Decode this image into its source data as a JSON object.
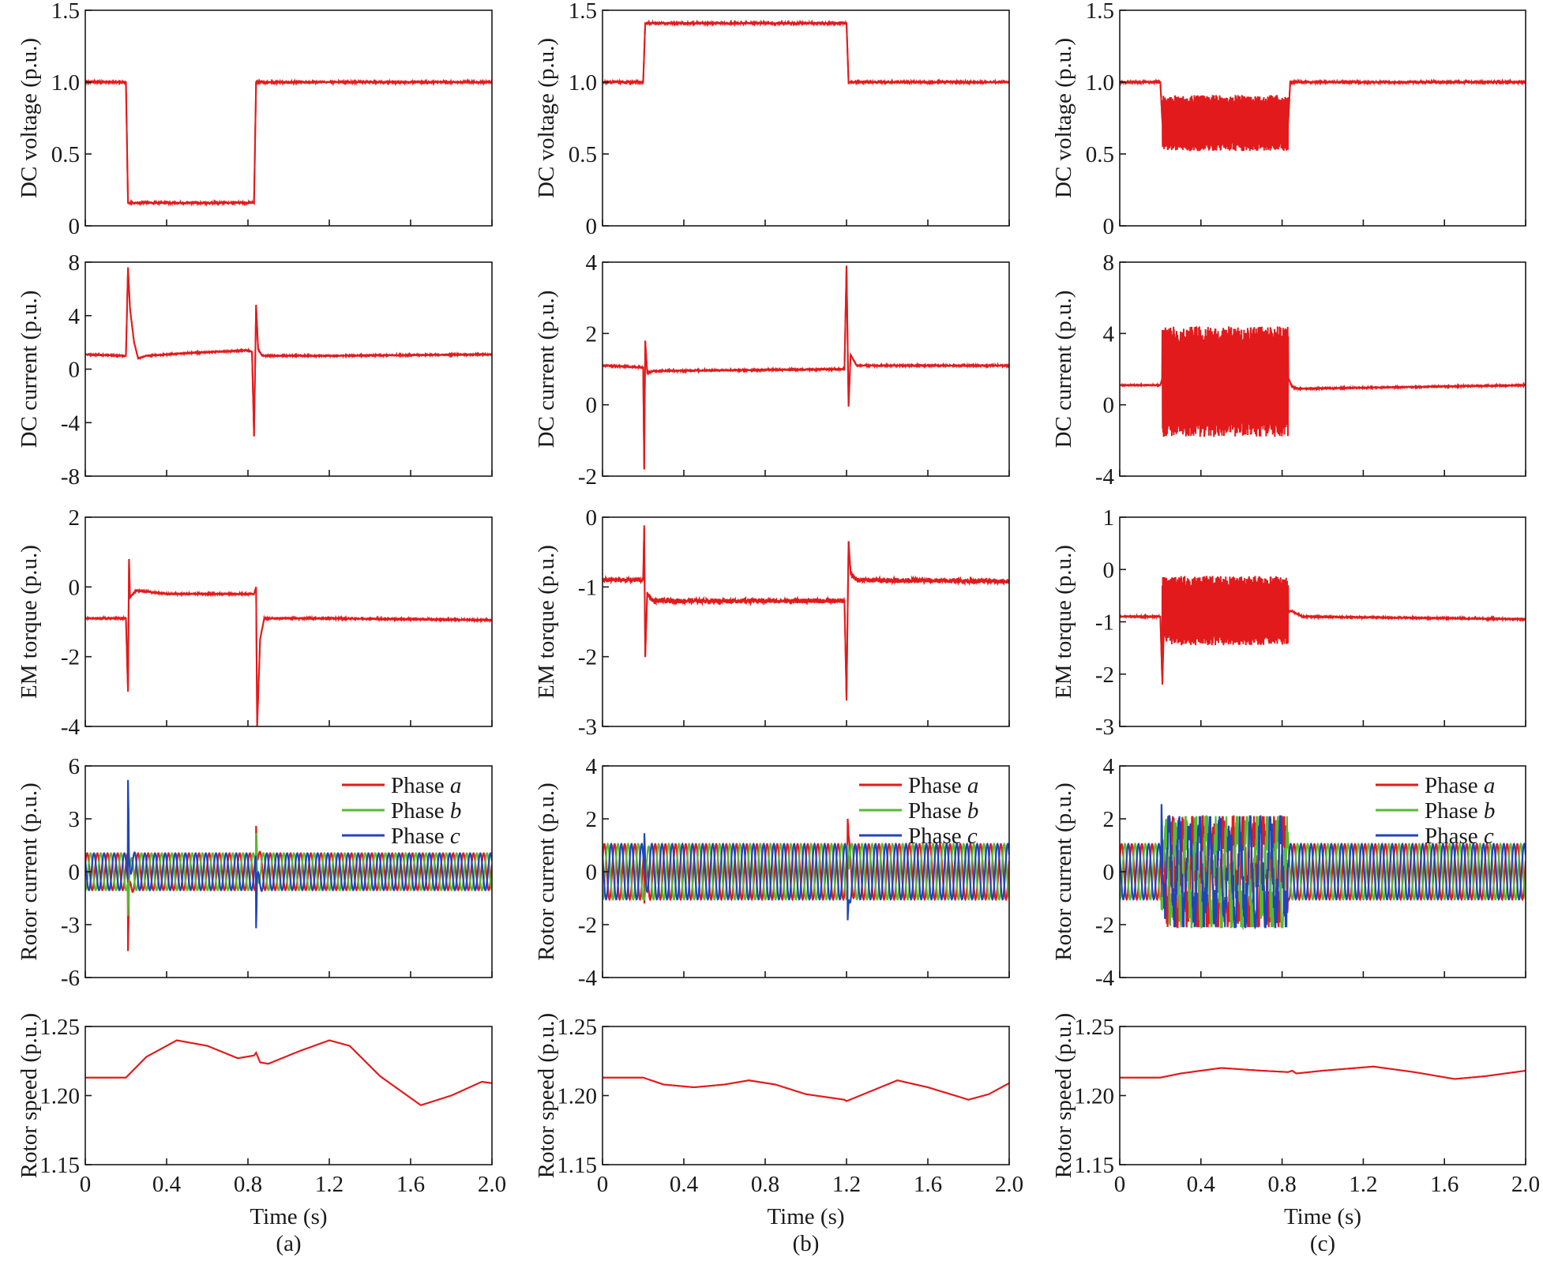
{
  "colors": {
    "phase_a": "#e31a1c",
    "phase_b": "#55bb33",
    "phase_c": "#2244bb",
    "single": "#e31a1c",
    "axis": "#1a1a1a"
  },
  "xaxis": {
    "label": "Time (s)",
    "ticks": [
      "0",
      "0.4",
      "0.8",
      "1.2",
      "1.6",
      "2.0"
    ],
    "range": [
      0,
      2
    ]
  },
  "legend": {
    "a": "Phase a",
    "b": "Phase b",
    "c": "Phase c"
  },
  "columns": [
    {
      "tag": "(a)"
    },
    {
      "tag": "(b)"
    },
    {
      "tag": "(c)"
    }
  ],
  "chart_data": [
    {
      "column": "(a)",
      "type": "line",
      "x_range": [
        0,
        2
      ],
      "rows": [
        {
          "ylabel": "DC voltage (p.u.)",
          "ylim": [
            0,
            1.5
          ],
          "yticks": [
            "0",
            "0.5",
            "1.0",
            "1.5"
          ],
          "series": [
            {
              "values": [
                [
                  0,
                  1.0
                ],
                [
                  0.2,
                  1.0
                ],
                [
                  0.21,
                  0.16
                ],
                [
                  0.83,
                  0.16
                ],
                [
                  0.84,
                  1.0
                ],
                [
                  2.0,
                  1.0
                ]
              ],
              "noise": 0.025
            }
          ]
        },
        {
          "ylabel": "DC current (p.u.)",
          "ylim": [
            -8,
            8
          ],
          "yticks": [
            "-8",
            "-4",
            "0",
            "4",
            "8"
          ],
          "series": [
            {
              "values": [
                [
                  0,
                  1.1
                ],
                [
                  0.2,
                  1.0
                ],
                [
                  0.21,
                  7.6
                ],
                [
                  0.22,
                  4.5
                ],
                [
                  0.24,
                  2.0
                ],
                [
                  0.26,
                  0.8
                ],
                [
                  0.3,
                  1.0
                ],
                [
                  0.5,
                  1.2
                ],
                [
                  0.8,
                  1.4
                ],
                [
                  0.82,
                  1.3
                ],
                [
                  0.83,
                  -5.0
                ],
                [
                  0.84,
                  4.8
                ],
                [
                  0.85,
                  1.5
                ],
                [
                  0.87,
                  1.0
                ],
                [
                  1.2,
                  1.0
                ],
                [
                  2.0,
                  1.1
                ]
              ],
              "noise": 0.05
            }
          ]
        },
        {
          "ylabel": "EM torque (p.u.)",
          "ylim": [
            -4,
            2
          ],
          "yticks": [
            "-4",
            "-2",
            "0",
            "2"
          ],
          "series": [
            {
              "values": [
                [
                  0,
                  -0.9
                ],
                [
                  0.2,
                  -0.9
                ],
                [
                  0.21,
                  -3.0
                ],
                [
                  0.215,
                  0.8
                ],
                [
                  0.22,
                  -0.3
                ],
                [
                  0.25,
                  -0.1
                ],
                [
                  0.4,
                  -0.2
                ],
                [
                  0.83,
                  -0.2
                ],
                [
                  0.84,
                  0.0
                ],
                [
                  0.845,
                  -4.0
                ],
                [
                  0.86,
                  -1.5
                ],
                [
                  0.88,
                  -0.9
                ],
                [
                  1.2,
                  -0.9
                ],
                [
                  2.0,
                  -0.95
                ]
              ],
              "noise": 0.06
            }
          ]
        },
        {
          "ylabel": "Rotor current (p.u.)",
          "ylim": [
            -6,
            6
          ],
          "yticks": [
            "-6",
            "-3",
            "0",
            "3",
            "6"
          ],
          "phases": true,
          "amplitude": 1.05,
          "frequency_hz": 20,
          "disturbances": [
            {
              "t": 0.21,
              "a": -4.5,
              "b": -2.5,
              "c": 5.2
            },
            {
              "t": 0.84,
              "a": 2.6,
              "b": 2.2,
              "c": -3.2
            }
          ]
        },
        {
          "ylabel": "Rotor speed (p.u.)",
          "ylim": [
            1.15,
            1.25
          ],
          "yticks": [
            "1.15",
            "1.20",
            "1.25"
          ],
          "series": [
            {
              "values": [
                [
                  0,
                  1.213
                ],
                [
                  0.2,
                  1.213
                ],
                [
                  0.3,
                  1.228
                ],
                [
                  0.45,
                  1.24
                ],
                [
                  0.6,
                  1.236
                ],
                [
                  0.75,
                  1.227
                ],
                [
                  0.83,
                  1.229
                ],
                [
                  0.84,
                  1.231
                ],
                [
                  0.86,
                  1.224
                ],
                [
                  0.9,
                  1.223
                ],
                [
                  1.05,
                  1.232
                ],
                [
                  1.2,
                  1.24
                ],
                [
                  1.3,
                  1.236
                ],
                [
                  1.45,
                  1.214
                ],
                [
                  1.65,
                  1.193
                ],
                [
                  1.8,
                  1.2
                ],
                [
                  1.95,
                  1.21
                ],
                [
                  2.0,
                  1.209
                ]
              ],
              "noise": 0
            }
          ]
        }
      ]
    },
    {
      "column": "(b)",
      "type": "line",
      "x_range": [
        0,
        2
      ],
      "rows": [
        {
          "ylabel": "DC voltage (p.u.)",
          "ylim": [
            0,
            1.5
          ],
          "yticks": [
            "0",
            "0.5",
            "1.0",
            "1.5"
          ],
          "series": [
            {
              "values": [
                [
                  0,
                  1.0
                ],
                [
                  0.2,
                  1.0
                ],
                [
                  0.21,
                  1.41
                ],
                [
                  1.2,
                  1.41
                ],
                [
                  1.21,
                  1.0
                ],
                [
                  2.0,
                  1.0
                ]
              ],
              "noise": 0.025
            }
          ]
        },
        {
          "ylabel": "DC current (p.u.)",
          "ylim": [
            -2,
            4
          ],
          "yticks": [
            "-2",
            "0",
            "2",
            "4"
          ],
          "series": [
            {
              "values": [
                [
                  0,
                  1.1
                ],
                [
                  0.2,
                  1.05
                ],
                [
                  0.205,
                  -1.8
                ],
                [
                  0.21,
                  1.8
                ],
                [
                  0.22,
                  0.9
                ],
                [
                  0.25,
                  0.95
                ],
                [
                  1.19,
                  1.0
                ],
                [
                  1.2,
                  3.9
                ],
                [
                  1.21,
                  -0.05
                ],
                [
                  1.22,
                  1.4
                ],
                [
                  1.25,
                  1.1
                ],
                [
                  2.0,
                  1.1
                ]
              ],
              "noise": 0.06
            }
          ]
        },
        {
          "ylabel": "EM torque (p.u.)",
          "ylim": [
            -3,
            0
          ],
          "yticks": [
            "-3",
            "-2",
            "-1",
            "0"
          ],
          "series": [
            {
              "values": [
                [
                  0,
                  -0.9
                ],
                [
                  0.2,
                  -0.9
                ],
                [
                  0.205,
                  -0.15
                ],
                [
                  0.21,
                  -2.0
                ],
                [
                  0.22,
                  -1.1
                ],
                [
                  0.25,
                  -1.2
                ],
                [
                  1.19,
                  -1.2
                ],
                [
                  1.2,
                  -2.6
                ],
                [
                  1.21,
                  -0.35
                ],
                [
                  1.22,
                  -0.8
                ],
                [
                  1.25,
                  -0.9
                ],
                [
                  2.0,
                  -0.92
                ]
              ],
              "noise": 0.07
            }
          ]
        },
        {
          "ylabel": "Rotor current (p.u.)",
          "ylim": [
            -4,
            4
          ],
          "yticks": [
            "-4",
            "-2",
            "0",
            "2",
            "4"
          ],
          "phases": true,
          "amplitude": 1.05,
          "frequency_hz": 20,
          "disturbances": [
            {
              "t": 0.205,
              "a": -1.4,
              "b": -1.1,
              "c": 1.6
            },
            {
              "t": 1.205,
              "a": 2.1,
              "b": 1.2,
              "c": -2.0
            }
          ]
        },
        {
          "ylabel": "Rotor speed (p.u.)",
          "ylim": [
            1.15,
            1.25
          ],
          "yticks": [
            "1.15",
            "1.20",
            "1.25"
          ],
          "series": [
            {
              "values": [
                [
                  0,
                  1.213
                ],
                [
                  0.2,
                  1.213
                ],
                [
                  0.3,
                  1.208
                ],
                [
                  0.45,
                  1.206
                ],
                [
                  0.6,
                  1.208
                ],
                [
                  0.72,
                  1.211
                ],
                [
                  0.85,
                  1.208
                ],
                [
                  1.0,
                  1.201
                ],
                [
                  1.19,
                  1.197
                ],
                [
                  1.2,
                  1.196
                ],
                [
                  1.3,
                  1.202
                ],
                [
                  1.45,
                  1.211
                ],
                [
                  1.6,
                  1.206
                ],
                [
                  1.8,
                  1.197
                ],
                [
                  1.9,
                  1.201
                ],
                [
                  2.0,
                  1.209
                ]
              ],
              "noise": 0
            }
          ]
        }
      ]
    },
    {
      "column": "(c)",
      "type": "line",
      "x_range": [
        0,
        2
      ],
      "rows": [
        {
          "ylabel": "DC voltage (p.u.)",
          "ylim": [
            0,
            1.5
          ],
          "yticks": [
            "0",
            "0.5",
            "1.0",
            "1.5"
          ],
          "series": [
            {
              "values": [
                [
                  0,
                  1.0
                ],
                [
                  0.2,
                  1.0
                ],
                [
                  0.21,
                  0.72
                ],
                [
                  0.83,
                  0.72
                ],
                [
                  0.84,
                  1.0
                ],
                [
                  2.0,
                  1.0
                ]
              ],
              "noise": 0.025
            }
          ],
          "oscillation": {
            "from": 0.21,
            "to": 0.83,
            "low": 0.52,
            "high": 0.91
          }
        },
        {
          "ylabel": "DC current (p.u.)",
          "ylim": [
            -4,
            8
          ],
          "yticks": [
            "-4",
            "0",
            "4",
            "8"
          ],
          "series": [
            {
              "values": [
                [
                  0,
                  1.1
                ],
                [
                  0.2,
                  1.1
                ],
                [
                  0.21,
                  1.5
                ],
                [
                  0.83,
                  1.5
                ],
                [
                  0.85,
                  1.0
                ],
                [
                  0.88,
                  0.9
                ],
                [
                  2.0,
                  1.1
                ]
              ],
              "noise": 0.05
            }
          ],
          "oscillation": {
            "from": 0.21,
            "to": 0.83,
            "low": -1.8,
            "high": 4.4
          }
        },
        {
          "ylabel": "EM torque (p.u.)",
          "ylim": [
            -3,
            1
          ],
          "yticks": [
            "-3",
            "-2",
            "-1",
            "0",
            "1"
          ],
          "series": [
            {
              "values": [
                [
                  0,
                  -0.9
                ],
                [
                  0.2,
                  -0.9
                ],
                [
                  0.21,
                  -2.2
                ],
                [
                  0.22,
                  -0.8
                ],
                [
                  0.83,
                  -0.8
                ],
                [
                  0.85,
                  -0.8
                ],
                [
                  0.9,
                  -0.9
                ],
                [
                  2.0,
                  -0.95
                ]
              ],
              "noise": 0.06
            }
          ],
          "oscillation": {
            "from": 0.21,
            "to": 0.83,
            "low": -1.45,
            "high": -0.12
          }
        },
        {
          "ylabel": "Rotor current (p.u.)",
          "ylim": [
            -4,
            4
          ],
          "yticks": [
            "-4",
            "-2",
            "0",
            "2",
            "4"
          ],
          "phases": true,
          "amplitude": 1.05,
          "frequency_hz": 20,
          "disturbances": [
            {
              "t": 0.205,
              "a": -1.2,
              "b": -1.5,
              "c": 2.8
            }
          ],
          "oscillation": {
            "from": 0.21,
            "to": 0.83,
            "low": -2.1,
            "high": 2.1
          }
        },
        {
          "ylabel": "Rotor speed (p.u.)",
          "ylim": [
            1.15,
            1.25
          ],
          "yticks": [
            "1.15",
            "1.20",
            "1.25"
          ],
          "series": [
            {
              "values": [
                [
                  0,
                  1.213
                ],
                [
                  0.2,
                  1.213
                ],
                [
                  0.3,
                  1.216
                ],
                [
                  0.5,
                  1.22
                ],
                [
                  0.7,
                  1.218
                ],
                [
                  0.83,
                  1.217
                ],
                [
                  0.85,
                  1.218
                ],
                [
                  0.87,
                  1.216
                ],
                [
                  1.0,
                  1.218
                ],
                [
                  1.25,
                  1.221
                ],
                [
                  1.45,
                  1.217
                ],
                [
                  1.65,
                  1.212
                ],
                [
                  1.8,
                  1.214
                ],
                [
                  2.0,
                  1.218
                ]
              ],
              "noise": 0
            }
          ]
        }
      ]
    }
  ]
}
